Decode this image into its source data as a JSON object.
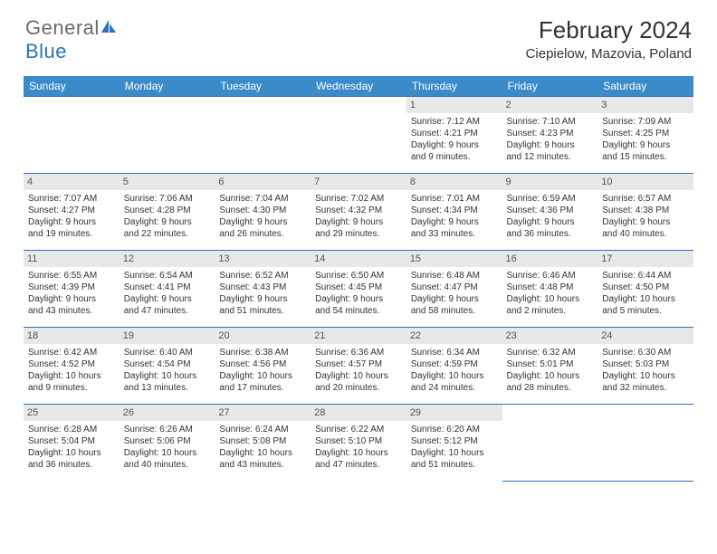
{
  "logo": {
    "text1": "General",
    "text2": "Blue"
  },
  "title": "February 2024",
  "location": "Ciepielow, Mazovia, Poland",
  "colors": {
    "header_bg": "#3b8bc9",
    "header_border": "#2a74b8",
    "daynum_bg": "#e8e8e8",
    "logo_gray": "#6b6b6b",
    "logo_blue": "#2a74b8"
  },
  "day_headers": [
    "Sunday",
    "Monday",
    "Tuesday",
    "Wednesday",
    "Thursday",
    "Friday",
    "Saturday"
  ],
  "weeks": [
    [
      null,
      null,
      null,
      null,
      {
        "n": "1",
        "sr": "7:12 AM",
        "ss": "4:21 PM",
        "dl": "9 hours and 9 minutes."
      },
      {
        "n": "2",
        "sr": "7:10 AM",
        "ss": "4:23 PM",
        "dl": "9 hours and 12 minutes."
      },
      {
        "n": "3",
        "sr": "7:09 AM",
        "ss": "4:25 PM",
        "dl": "9 hours and 15 minutes."
      }
    ],
    [
      {
        "n": "4",
        "sr": "7:07 AM",
        "ss": "4:27 PM",
        "dl": "9 hours and 19 minutes."
      },
      {
        "n": "5",
        "sr": "7:06 AM",
        "ss": "4:28 PM",
        "dl": "9 hours and 22 minutes."
      },
      {
        "n": "6",
        "sr": "7:04 AM",
        "ss": "4:30 PM",
        "dl": "9 hours and 26 minutes."
      },
      {
        "n": "7",
        "sr": "7:02 AM",
        "ss": "4:32 PM",
        "dl": "9 hours and 29 minutes."
      },
      {
        "n": "8",
        "sr": "7:01 AM",
        "ss": "4:34 PM",
        "dl": "9 hours and 33 minutes."
      },
      {
        "n": "9",
        "sr": "6:59 AM",
        "ss": "4:36 PM",
        "dl": "9 hours and 36 minutes."
      },
      {
        "n": "10",
        "sr": "6:57 AM",
        "ss": "4:38 PM",
        "dl": "9 hours and 40 minutes."
      }
    ],
    [
      {
        "n": "11",
        "sr": "6:55 AM",
        "ss": "4:39 PM",
        "dl": "9 hours and 43 minutes."
      },
      {
        "n": "12",
        "sr": "6:54 AM",
        "ss": "4:41 PM",
        "dl": "9 hours and 47 minutes."
      },
      {
        "n": "13",
        "sr": "6:52 AM",
        "ss": "4:43 PM",
        "dl": "9 hours and 51 minutes."
      },
      {
        "n": "14",
        "sr": "6:50 AM",
        "ss": "4:45 PM",
        "dl": "9 hours and 54 minutes."
      },
      {
        "n": "15",
        "sr": "6:48 AM",
        "ss": "4:47 PM",
        "dl": "9 hours and 58 minutes."
      },
      {
        "n": "16",
        "sr": "6:46 AM",
        "ss": "4:48 PM",
        "dl": "10 hours and 2 minutes."
      },
      {
        "n": "17",
        "sr": "6:44 AM",
        "ss": "4:50 PM",
        "dl": "10 hours and 5 minutes."
      }
    ],
    [
      {
        "n": "18",
        "sr": "6:42 AM",
        "ss": "4:52 PM",
        "dl": "10 hours and 9 minutes."
      },
      {
        "n": "19",
        "sr": "6:40 AM",
        "ss": "4:54 PM",
        "dl": "10 hours and 13 minutes."
      },
      {
        "n": "20",
        "sr": "6:38 AM",
        "ss": "4:56 PM",
        "dl": "10 hours and 17 minutes."
      },
      {
        "n": "21",
        "sr": "6:36 AM",
        "ss": "4:57 PM",
        "dl": "10 hours and 20 minutes."
      },
      {
        "n": "22",
        "sr": "6:34 AM",
        "ss": "4:59 PM",
        "dl": "10 hours and 24 minutes."
      },
      {
        "n": "23",
        "sr": "6:32 AM",
        "ss": "5:01 PM",
        "dl": "10 hours and 28 minutes."
      },
      {
        "n": "24",
        "sr": "6:30 AM",
        "ss": "5:03 PM",
        "dl": "10 hours and 32 minutes."
      }
    ],
    [
      {
        "n": "25",
        "sr": "6:28 AM",
        "ss": "5:04 PM",
        "dl": "10 hours and 36 minutes."
      },
      {
        "n": "26",
        "sr": "6:26 AM",
        "ss": "5:06 PM",
        "dl": "10 hours and 40 minutes."
      },
      {
        "n": "27",
        "sr": "6:24 AM",
        "ss": "5:08 PM",
        "dl": "10 hours and 43 minutes."
      },
      {
        "n": "28",
        "sr": "6:22 AM",
        "ss": "5:10 PM",
        "dl": "10 hours and 47 minutes."
      },
      {
        "n": "29",
        "sr": "6:20 AM",
        "ss": "5:12 PM",
        "dl": "10 hours and 51 minutes."
      },
      null,
      null
    ]
  ],
  "labels": {
    "sunrise": "Sunrise:",
    "sunset": "Sunset:",
    "daylight": "Daylight:"
  }
}
